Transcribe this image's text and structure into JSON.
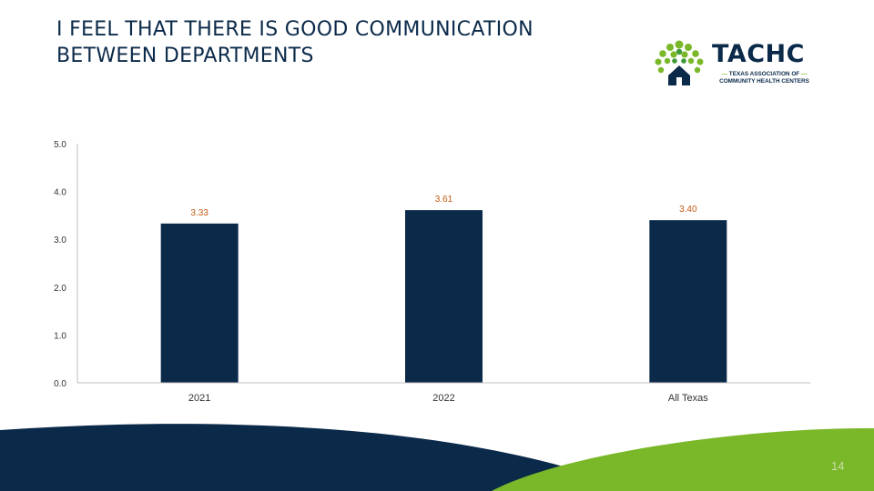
{
  "slide": {
    "title_line1": "I FEEL THAT THERE IS GOOD COMMUNICATION",
    "title_line2": "BETWEEN DEPARTMENTS",
    "page_number": "14"
  },
  "logo": {
    "name": "TACHC",
    "sub_line1": "TEXAS ASSOCIATION OF",
    "sub_line2": "COMMUNITY HEALTH CENTERS",
    "icon": "tree-house-icon"
  },
  "colors": {
    "navy": "#0b2a4a",
    "bar": "#0b2a4a",
    "data_label": "#c55a11",
    "green": "#7ab829",
    "axis_text": "#333333"
  },
  "chart_data": {
    "type": "bar",
    "categories": [
      "2021",
      "2022",
      "All Texas"
    ],
    "values": [
      3.33,
      3.61,
      3.4
    ],
    "data_labels": [
      "3.33",
      "3.61",
      "3.40"
    ],
    "ylim": [
      0,
      5
    ],
    "yticks": [
      "0.0",
      "1.0",
      "2.0",
      "3.0",
      "4.0",
      "5.0"
    ],
    "title": "",
    "xlabel": "",
    "ylabel": "",
    "grid": false,
    "legend": "none"
  }
}
